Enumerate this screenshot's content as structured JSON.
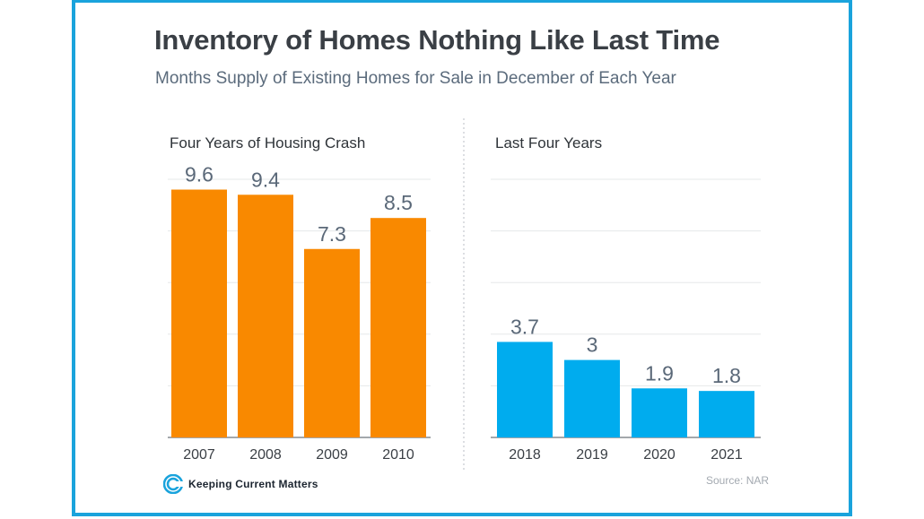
{
  "title": "Inventory of Homes Nothing Like Last Time",
  "subtitle": "Months Supply of Existing Homes for Sale in December of Each Year",
  "logo_text": "Keeping Current Matters",
  "source": "Source: NAR",
  "colors": {
    "frame": "#1aa3dc",
    "crash": "#f98900",
    "recent": "#00acee",
    "label": "#5a6878"
  },
  "chart_data": [
    {
      "type": "bar",
      "title": "Four Years of Housing Crash",
      "categories": [
        "2007",
        "2008",
        "2009",
        "2010"
      ],
      "values": [
        9.6,
        9.4,
        7.3,
        8.5
      ],
      "value_labels": [
        "9.6",
        "9.4",
        "7.3",
        "8.5"
      ],
      "ylim": [
        0,
        10
      ],
      "grid": true,
      "color": "#f98900"
    },
    {
      "type": "bar",
      "title": "Last Four Years",
      "categories": [
        "2018",
        "2019",
        "2020",
        "2021"
      ],
      "values": [
        3.7,
        3,
        1.9,
        1.8
      ],
      "value_labels": [
        "3.7",
        "3",
        "1.9",
        "1.8"
      ],
      "ylim": [
        0,
        10
      ],
      "grid": true,
      "color": "#00acee"
    }
  ]
}
